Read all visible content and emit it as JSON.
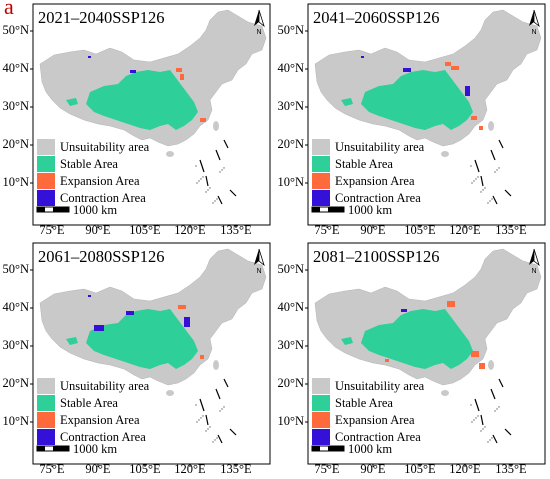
{
  "panel_letter": "a",
  "colors": {
    "unsuitability": "#c9c9c9",
    "stable": "#2ecf99",
    "expansion": "#ff6a3c",
    "contraction": "#3410d9"
  },
  "icons": {
    "north_arrow": "north-arrow-icon",
    "scale_bar": "scale-bar-icon"
  },
  "maps": [
    {
      "title": "2021–2040SSP126",
      "north_label": "N",
      "lat_labels": [
        "50°N",
        "40°N",
        "30°N",
        "20°N",
        "10°N"
      ],
      "lon_labels": [
        "75°E",
        "90°E",
        "105°E",
        "120°E",
        "135°E"
      ],
      "legend": [
        "Unsuitability area",
        "Stable Area",
        "Expansion Area",
        "Contraction Area"
      ],
      "scale_label": "1000 km"
    },
    {
      "title": "2041–2060SSP126",
      "north_label": "N",
      "lat_labels": [
        "50°N",
        "40°N",
        "30°N",
        "20°N",
        "10°N"
      ],
      "lon_labels": [
        "75°E",
        "90°E",
        "105°E",
        "120°E",
        "135°E"
      ],
      "legend": [
        "Unsuitability area",
        "Stable Area",
        "Expansion Area",
        "Contraction Area"
      ],
      "scale_label": "1000 km"
    },
    {
      "title": "2061–2080SSP126",
      "north_label": "N",
      "lat_labels": [
        "50°N",
        "40°N",
        "30°N",
        "20°N",
        "10°N"
      ],
      "lon_labels": [
        "75°E",
        "90°E",
        "105°E",
        "120°E",
        "135°E"
      ],
      "legend": [
        "Unsuitability area",
        "Stable Area",
        "Expansion Area",
        "Contraction Area"
      ],
      "scale_label": "1000 km"
    },
    {
      "title": "2081–2100SSP126",
      "north_label": "N",
      "lat_labels": [
        "50°N",
        "40°N",
        "30°N",
        "20°N",
        "10°N"
      ],
      "lon_labels": [
        "75°E",
        "90°E",
        "105°E",
        "120°E",
        "135°E"
      ],
      "legend": [
        "Unsuitability area",
        "Stable Area",
        "Expansion Area",
        "Contraction Area"
      ],
      "scale_label": "1000 km"
    }
  ]
}
